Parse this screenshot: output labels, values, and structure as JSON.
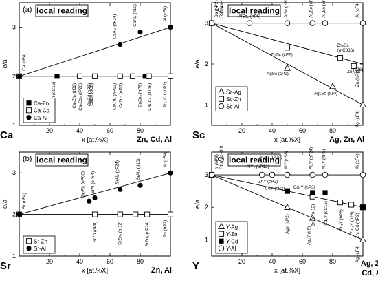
{
  "chart_data": [
    {
      "type": "scatter",
      "panel_label": "(a)",
      "badge": "local reading",
      "x_start_label": "Ca",
      "x_end_label": "Zn, Cd, Al",
      "xlabel": "x [at.%X]",
      "ylabel": "e/a",
      "xlim": [
        0,
        100
      ],
      "ylim": [
        1,
        3.5
      ],
      "xticks": [
        0,
        20,
        40,
        60,
        80,
        100
      ],
      "yticks": [
        1,
        2,
        3
      ],
      "left_labels": [
        "Ca (cF4)"
      ],
      "right_labels": [
        "Al (cF4)",
        "Zn, Cd (hP2)"
      ],
      "series": [
        {
          "name": "Ca-Zn",
          "marker": "filled-square",
          "x": [
            0,
            25,
            40,
            50,
            66.7,
            83.3,
            100
          ],
          "y": [
            2,
            2,
            2,
            2,
            2,
            2,
            2
          ]
        },
        {
          "name": "Ca-Cd",
          "marker": "open-square",
          "x": [
            0,
            40,
            50,
            66.7,
            75,
            85.7,
            100
          ],
          "y": [
            2,
            2,
            2,
            2,
            2,
            2,
            2
          ]
        },
        {
          "name": "Ca-Al",
          "marker": "filled-circle",
          "x": [
            0,
            66.7,
            80,
            100
          ],
          "y": [
            2,
            2.65,
            2.9,
            3
          ]
        }
      ],
      "lines": [
        {
          "x": [
            0,
            100
          ],
          "y": [
            2,
            2
          ]
        },
        {
          "x": [
            0,
            100
          ],
          "y": [
            2,
            3
          ]
        }
      ],
      "annotations": [
        {
          "text": "CaAl₂ (cF24)",
          "x": 66.7,
          "y": 2.65
        },
        {
          "text": "CaAl₄ (tI10)",
          "x": 80,
          "y": 2.9
        },
        {
          "text": "CaZn (oC8)",
          "x": 50,
          "y": 2
        },
        {
          "text": "Ca₃Zn (oC16)",
          "x": 25,
          "y": 2
        },
        {
          "text": "Ca₃Zn₂ (tI32)",
          "x": 40,
          "y": 2
        },
        {
          "text": "Ca₃Cd₂ (tP20)",
          "x": 40,
          "y": 2
        },
        {
          "text": "CaCd (oP2)",
          "x": 50,
          "y": 2
        },
        {
          "text": "CaCd₂ (hP12)",
          "x": 66.7,
          "y": 2
        },
        {
          "text": "CaZn₂ (oI12)",
          "x": 66.7,
          "y": 2
        },
        {
          "text": "CaZn₅ (hP6)",
          "x": 83.3,
          "y": 2
        },
        {
          "text": "CaCd₆ (cI168)",
          "x": 85.7,
          "y": 2
        }
      ]
    },
    {
      "type": "scatter",
      "panel_label": "(b)",
      "badge": "local reading",
      "x_start_label": "Sr",
      "x_end_label": "Zn, Al",
      "xlabel": "x [at.%X]",
      "ylabel": "e/a",
      "xlim": [
        0,
        100
      ],
      "ylim": [
        1,
        3.5
      ],
      "xticks": [
        0,
        20,
        40,
        60,
        80,
        100
      ],
      "yticks": [
        1,
        2,
        3
      ],
      "left_labels": [
        "Sr (cF4)"
      ],
      "right_labels": [
        "Al (cF4)",
        "Zn (hP2)"
      ],
      "series": [
        {
          "name": "Sr-Zn",
          "marker": "open-square",
          "x": [
            0,
            50,
            66.7,
            76.9,
            84.6,
            100
          ],
          "y": [
            2,
            2,
            2,
            2,
            2,
            2
          ]
        },
        {
          "name": "Sr-Al",
          "marker": "filled-circle",
          "x": [
            0,
            46.2,
            50,
            66.7,
            80,
            100
          ],
          "y": [
            2,
            2.32,
            2.4,
            2.6,
            2.7,
            3
          ]
        }
      ],
      "lines": [
        {
          "x": [
            0,
            100
          ],
          "y": [
            2,
            2
          ]
        },
        {
          "x": [
            0,
            100
          ],
          "y": [
            2,
            3
          ]
        }
      ],
      "annotations": [
        {
          "text": "Sr₇Al₆ (oP60)",
          "x": 46.2,
          "y": 2.32
        },
        {
          "text": "SrAl (oP64)",
          "x": 50,
          "y": 2.4
        },
        {
          "text": "SrAl₂ (cF24)",
          "x": 66.7,
          "y": 2.6
        },
        {
          "text": "SrAl₄ (tI10)",
          "x": 80,
          "y": 2.7
        },
        {
          "text": "SrZn (oP8)",
          "x": 50,
          "y": 2
        },
        {
          "text": "SrZn₂ (oI12)",
          "x": 66.7,
          "y": 2
        },
        {
          "text": "SrZn₅ (oP24)",
          "x": 84.6,
          "y": 2
        }
      ]
    },
    {
      "type": "scatter",
      "panel_label": "(c)",
      "badge": "local reading",
      "x_start_label": "Sc",
      "x_end_label": "Ag, Zn, Al",
      "xlabel": "x [at.%X]",
      "ylabel": "e/a",
      "xlim": [
        0,
        100
      ],
      "ylim": [
        0.5,
        3.5
      ],
      "xticks": [
        0,
        20,
        40,
        60,
        80,
        100
      ],
      "yticks": [
        1,
        2,
        3
      ],
      "left_labels": [
        "Sc (hP2)",
        "RKmax=8.0"
      ],
      "right_labels": [
        "Al (cF4)",
        "Zn (hP2)",
        "Ag (cF4)"
      ],
      "series": [
        {
          "name": "Sc-Ag",
          "marker": "open-triangle",
          "x": [
            0,
            50,
            80,
            100
          ],
          "y": [
            3,
            1.9,
            1.45,
            1
          ]
        },
        {
          "name": "Sc-Zn",
          "marker": "open-square",
          "x": [
            0,
            50,
            85,
            94
          ],
          "y": [
            3,
            2.4,
            2.15,
            1.95
          ]
        },
        {
          "name": "Sc-Al",
          "marker": "open-circle",
          "x": [
            0,
            25,
            50,
            66.7,
            75,
            100
          ],
          "y": [
            3,
            3,
            3,
            3,
            3,
            3
          ]
        }
      ],
      "lines": [
        {
          "x": [
            0,
            100
          ],
          "y": [
            3,
            3
          ]
        },
        {
          "x": [
            0,
            100
          ],
          "y": [
            3,
            2
          ]
        },
        {
          "x": [
            0,
            100
          ],
          "y": [
            3,
            1
          ]
        }
      ],
      "annotations": [
        {
          "text": "AlSc₂ (hP6)",
          "x": 25,
          "y": 3
        },
        {
          "text": "AlSc (cP2)",
          "x": 50,
          "y": 3
        },
        {
          "text": "Al₂Sc (cF24)",
          "x": 66.7,
          "y": 3
        },
        {
          "text": "Al₃Sc (cP4)",
          "x": 75,
          "y": 3
        },
        {
          "text": "Zn₆Sc",
          "x": 85,
          "y": 2.15
        },
        {
          "text": "(mC336)",
          "x": 85,
          "y": 2.15
        },
        {
          "text": "Zn₁₂Sc",
          "x": 94,
          "y": 1.95
        },
        {
          "text": "(tI26)",
          "x": 94,
          "y": 1.95
        },
        {
          "text": "ZnSc (cP2)",
          "x": 50,
          "y": 2.4
        },
        {
          "text": "AgSc (cP2)",
          "x": 50,
          "y": 1.9
        },
        {
          "text": "Ag₄Sc (tI10)",
          "x": 80,
          "y": 1.45
        }
      ]
    },
    {
      "type": "scatter",
      "panel_label": "(d)",
      "badge": "local reading",
      "x_start_label": "Y",
      "x_end_label": "Ag, Zn Cd, Al",
      "xlabel": "x [at.%X]",
      "ylabel": "e/a",
      "xlim": [
        0,
        100
      ],
      "ylim": [
        0.5,
        3.7
      ],
      "xticks": [
        0,
        20,
        40,
        60,
        80,
        100
      ],
      "yticks": [
        1,
        2,
        3
      ],
      "left_labels": [
        "Y (hP2)",
        "RKmax=9.0"
      ],
      "right_labels": [
        "Al (cF4)",
        "Zn, Cd (hP2)",
        "Ag (cF4)"
      ],
      "series": [
        {
          "name": "Y-Ag",
          "marker": "open-triangle",
          "x": [
            0,
            50,
            66.7,
            100
          ],
          "y": [
            3,
            2,
            1.67,
            1
          ]
        },
        {
          "name": "Y-Zn",
          "marker": "open-square",
          "x": [
            0,
            50,
            66.7,
            85,
            92.3,
            100
          ],
          "y": [
            3,
            2.5,
            2.33,
            2.15,
            2.08,
            2
          ]
        },
        {
          "name": "Y-Cd",
          "marker": "filled-square",
          "x": [
            0,
            50,
            66.7,
            75,
            100
          ],
          "y": [
            3,
            2.5,
            2.45,
            2.45,
            2
          ]
        },
        {
          "name": "Y-Al",
          "marker": "open-circle",
          "x": [
            0,
            33.3,
            40,
            50,
            66.7,
            75,
            100
          ],
          "y": [
            3,
            3,
            3,
            3,
            3,
            3,
            3
          ]
        }
      ],
      "lines": [
        {
          "x": [
            0,
            100
          ],
          "y": [
            3,
            3
          ]
        },
        {
          "x": [
            0,
            100
          ],
          "y": [
            3,
            2
          ]
        },
        {
          "x": [
            0,
            100
          ],
          "y": [
            3,
            1
          ]
        }
      ],
      "annotations": [
        {
          "text": "AlY₂ (oP12)",
          "x": 33.3,
          "y": 3
        },
        {
          "text": "Al₂Y₃ (tP20)",
          "x": 40,
          "y": 3
        },
        {
          "text": "AlY (oS8)",
          "x": 50,
          "y": 3
        },
        {
          "text": "Al₂Y (cF24)",
          "x": 66.7,
          "y": 3
        },
        {
          "text": "Al₃Y (hP8)",
          "x": 75,
          "y": 3
        },
        {
          "text": "ZnY (cP2)",
          "x": 50,
          "y": 2.5
        },
        {
          "text": "CdY (cP2)",
          "x": 50,
          "y": 2.5
        },
        {
          "text": "Cd₂Y (hP3)",
          "x": 66.7,
          "y": 2.45
        },
        {
          "text": "AgY (cP2)",
          "x": 50,
          "y": 2
        },
        {
          "text": "Ag₂Y (tI6)",
          "x": 66.7,
          "y": 1.67
        },
        {
          "text": "Zn₂Y (oI12)",
          "x": 66.7,
          "y": 2.33
        },
        {
          "text": "Cd₃Y (oC16)",
          "x": 75,
          "y": 2.45
        },
        {
          "text": "Zn₅Y (hP6)",
          "x": 85,
          "y": 2.15
        },
        {
          "text": "Zn₁₂Y (tI26)",
          "x": 92.3,
          "y": 2.08
        }
      ]
    }
  ]
}
